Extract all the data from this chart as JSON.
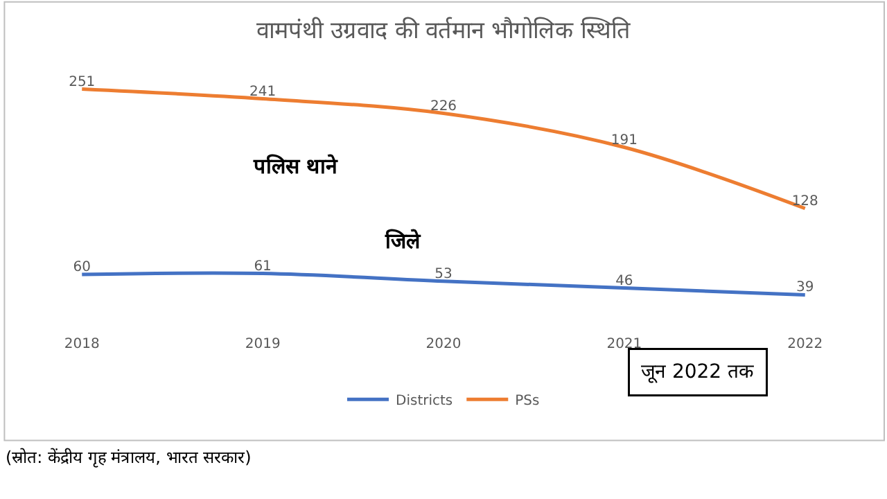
{
  "chart_data": {
    "type": "line",
    "title": "वामपंथी उग्रवाद की वर्तमान भौगोलिक स्थिति",
    "categories": [
      "2018",
      "2019",
      "2020",
      "2021",
      "2022"
    ],
    "series": [
      {
        "name": "Districts",
        "color": "#4472c4",
        "values": [
          60,
          61,
          53,
          46,
          39
        ]
      },
      {
        "name": "PSs",
        "color": "#ed7d31",
        "values": [
          251,
          241,
          226,
          191,
          128
        ]
      }
    ],
    "data_labels": true,
    "legend": "bottom",
    "marker": "none",
    "line_style": "solid",
    "tick_labels": "x",
    "annotations": [
      "पलिस थाने",
      "जिले",
      "जून 2022 तक",
      "(स्रोत: केंद्रीय गृह मंत्रालय, भारत सरकार)"
    ]
  }
}
